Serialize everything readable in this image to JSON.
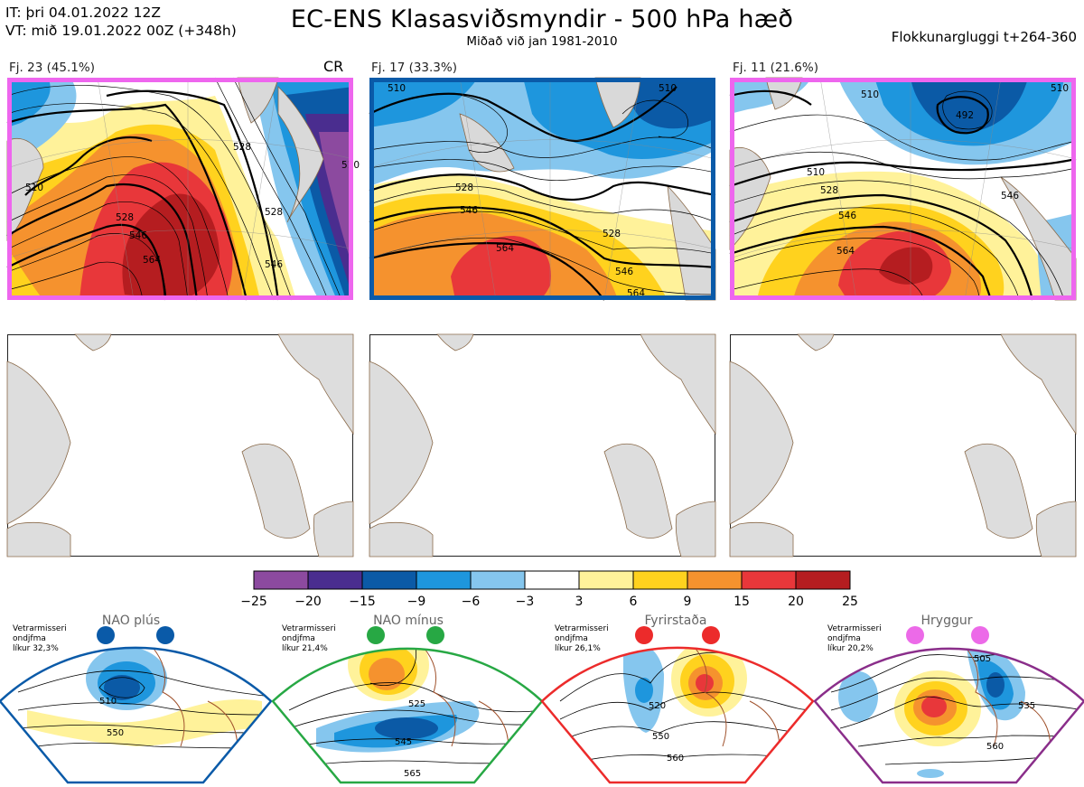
{
  "header": {
    "it_line": "IT: þri 04.01.2022 12Z",
    "vt_line": "VT: mið 19.01.2022 00Z  (+348h)",
    "title": "EC-ENS Klasasviðsmyndir - 500 hPa hæð",
    "subtitle": "Miðað við jan 1981-2010",
    "window": "Flokkunargluggi t+264-360"
  },
  "clusters": [
    {
      "label": "Fj. 23 (45.1%)",
      "tag": "CR",
      "frame_color": "#ee66ee",
      "contours": [
        "510",
        "528",
        "546",
        "564",
        "528",
        "546",
        "528",
        "510"
      ]
    },
    {
      "label": "Fj. 17 (33.3%)",
      "tag": "",
      "frame_color": "#0a5aa8",
      "contours": [
        "510",
        "528",
        "546",
        "564",
        "528",
        "546",
        "564",
        "510"
      ]
    },
    {
      "label": "Fj. 11 (21.6%)",
      "tag": "",
      "frame_color": "#ee66ee",
      "contours": [
        "510",
        "492",
        "510",
        "528",
        "546",
        "564",
        "510",
        "546"
      ]
    }
  ],
  "legend": {
    "ticks": [
      "−25",
      "−20",
      "−15",
      "−9",
      "−6",
      "−3",
      "3",
      "6",
      "9",
      "15",
      "20",
      "25"
    ],
    "colors": [
      "#8c4a9f",
      "#4a2d8f",
      "#0b5aa6",
      "#1e96dd",
      "#85c6ee",
      "#ffffff",
      "#fff29a",
      "#ffd21e",
      "#f5922e",
      "#e8373a",
      "#b51d20"
    ]
  },
  "regimes": [
    {
      "name": "NAO plús",
      "color": "#0a5aa8",
      "desc1": "Vetrarmisseri",
      "desc2": "ondjfma",
      "desc3": "líkur 32,3%",
      "contours": [
        "510",
        "550"
      ]
    },
    {
      "name": "NAO mínus",
      "color": "#27a844",
      "desc1": "Vetrarmisseri",
      "desc2": "ondjfma",
      "desc3": "líkur 21,4%",
      "contours": [
        "525",
        "545",
        "565"
      ]
    },
    {
      "name": "Fyrirstaða",
      "color": "#ec2b2b",
      "desc1": "Vetrarmisseri",
      "desc2": "ondjfma",
      "desc3": "líkur 26,1%",
      "contours": [
        "520",
        "550",
        "560"
      ]
    },
    {
      "name": "Hryggur",
      "color": "#ec6ae8",
      "desc1": "Vetrarmisseri",
      "desc2": "ondjfma",
      "desc3": "líkur 20,2%",
      "contours": [
        "505",
        "535",
        "560"
      ]
    }
  ]
}
